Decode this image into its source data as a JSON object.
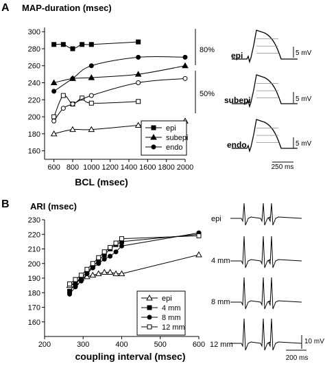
{
  "chart_data": [
    {
      "panel": "A",
      "type": "line",
      "title": "MAP-duration (msec)",
      "xlabel": "BCL (msec)",
      "ylabel": "",
      "xlim": [
        500,
        2000
      ],
      "ylim": [
        150,
        305
      ],
      "xticks": [
        600,
        800,
        1000,
        1200,
        1400,
        1600,
        1800,
        2000
      ],
      "yticks": [
        160,
        180,
        200,
        220,
        240,
        260,
        280,
        300
      ],
      "legend_position": "bottom-right",
      "series": [
        {
          "name": "epi",
          "group": "80%",
          "marker": "filled-square",
          "x": [
            600,
            700,
            800,
            900,
            1000,
            1500
          ],
          "y": [
            285,
            285,
            280,
            285,
            285,
            288
          ]
        },
        {
          "name": "subepi",
          "group": "80%",
          "marker": "filled-triangle",
          "x": [
            600,
            800,
            1000,
            1500,
            2000
          ],
          "y": [
            240,
            245,
            246,
            250,
            260
          ]
        },
        {
          "name": "endo",
          "group": "80%",
          "marker": "filled-circle",
          "x": [
            600,
            800,
            1000,
            1500,
            2000
          ],
          "y": [
            230,
            245,
            260,
            270,
            270
          ]
        },
        {
          "name": "",
          "group": "50%",
          "marker": "open-square",
          "x": [
            600,
            700,
            800,
            900,
            1000,
            1500
          ],
          "y": [
            200,
            225,
            215,
            222,
            216,
            218
          ]
        },
        {
          "name": "",
          "group": "50%",
          "marker": "open-circle",
          "x": [
            600,
            700,
            800,
            1000,
            1500,
            2000
          ],
          "y": [
            195,
            210,
            215,
            225,
            240,
            245
          ]
        },
        {
          "name": "",
          "group": "50%",
          "marker": "open-triangle",
          "x": [
            600,
            800,
            1000,
            1500,
            2000
          ],
          "y": [
            180,
            185,
            185,
            190,
            195
          ]
        }
      ],
      "annotations": [
        "80%",
        "50%"
      ],
      "traces": {
        "labels": [
          "epi",
          "subepi",
          "endo"
        ],
        "amplitude_scale": "5 mV",
        "time_scale": "250 ms"
      }
    },
    {
      "panel": "B",
      "type": "line",
      "title": "ARI (msec)",
      "xlabel": "coupling interval (msec)",
      "ylabel": "",
      "xlim": [
        200,
        600
      ],
      "ylim": [
        150,
        230
      ],
      "xticks": [
        200,
        300,
        400,
        500,
        600
      ],
      "yticks": [
        160,
        170,
        180,
        190,
        200,
        210,
        220,
        230
      ],
      "legend_position": "bottom-right",
      "series": [
        {
          "name": "epi",
          "marker": "open-triangle",
          "x": [
            265,
            280,
            295,
            310,
            325,
            340,
            355,
            370,
            385,
            400,
            600
          ],
          "y": [
            185,
            187,
            190,
            191,
            192,
            193,
            194,
            194,
            193,
            193,
            206
          ]
        },
        {
          "name": "4 mm",
          "marker": "filled-square",
          "x": [
            265,
            280,
            295,
            310,
            325,
            340,
            355,
            370,
            385,
            400,
            600
          ],
          "y": [
            181,
            186,
            190,
            194,
            198,
            202,
            206,
            210,
            213,
            215,
            220
          ]
        },
        {
          "name": "8 mm",
          "marker": "filled-circle",
          "x": [
            265,
            280,
            295,
            310,
            325,
            340,
            355,
            370,
            385,
            400,
            600
          ],
          "y": [
            179,
            184,
            188,
            193,
            197,
            200,
            203,
            205,
            208,
            212,
            221
          ]
        },
        {
          "name": "12 mm",
          "marker": "open-square",
          "x": [
            265,
            280,
            295,
            310,
            325,
            340,
            355,
            370,
            385,
            400,
            600
          ],
          "y": [
            186,
            189,
            192,
            196,
            200,
            204,
            208,
            211,
            214,
            217,
            219
          ]
        }
      ],
      "traces": {
        "labels": [
          "epi",
          "4 mm",
          "8 mm",
          "12 mm"
        ],
        "amplitude_scale": "10 mV",
        "time_scale": "200 ms"
      }
    }
  ],
  "panel_labels": {
    "a": "A",
    "b": "B"
  }
}
